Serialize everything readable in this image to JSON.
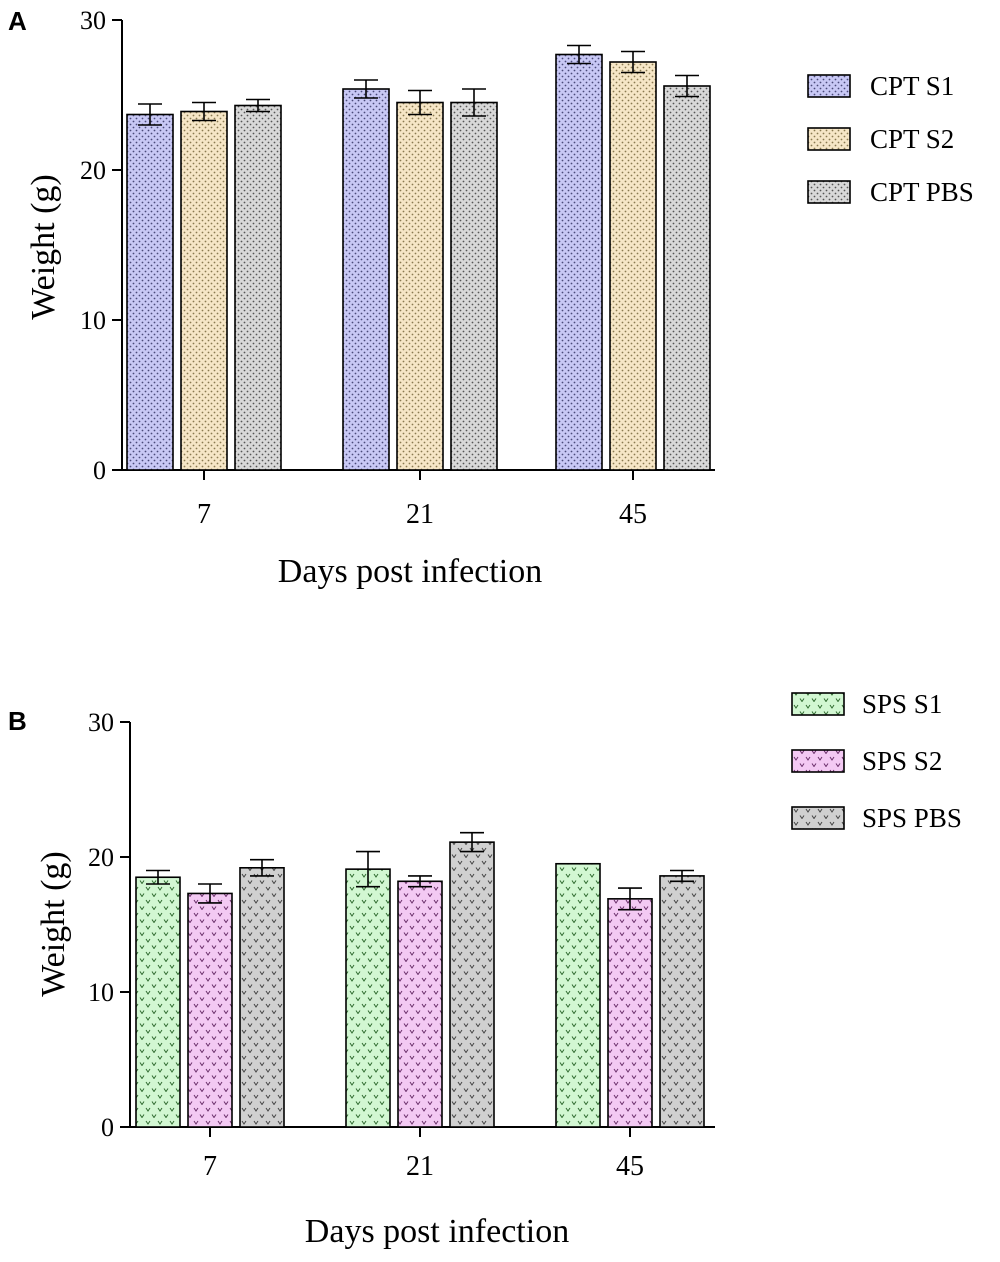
{
  "panels": [
    {
      "letter": "A",
      "chart_data": {
        "type": "bar",
        "title": "",
        "xlabel": "Days post infection",
        "ylabel": "Weight (g)",
        "ylim": [
          0,
          30
        ],
        "yticks": [
          0,
          10,
          20,
          30
        ],
        "categories": [
          "7",
          "21",
          "45"
        ],
        "series": [
          {
            "name": "CPT S1",
            "color": "#c8c8f5",
            "pattern": "dots",
            "values": [
              23.7,
              25.4,
              27.7
            ],
            "errors": [
              0.7,
              0.6,
              0.6
            ]
          },
          {
            "name": "CPT S2",
            "color": "#f6e6c6",
            "pattern": "dots",
            "values": [
              23.9,
              24.5,
              27.2
            ],
            "errors": [
              0.6,
              0.8,
              0.7
            ]
          },
          {
            "name": "CPT PBS",
            "color": "#d8d8d8",
            "pattern": "dots",
            "values": [
              24.3,
              24.5,
              25.6
            ],
            "errors": [
              0.4,
              0.9,
              0.7
            ]
          }
        ],
        "legend": "right"
      }
    },
    {
      "letter": "B",
      "chart_data": {
        "type": "bar",
        "title": "",
        "xlabel": "Days post infection",
        "ylabel": "Weight (g)",
        "ylim": [
          0,
          30
        ],
        "yticks": [
          0,
          10,
          20,
          30
        ],
        "categories": [
          "7",
          "21",
          "45"
        ],
        "series": [
          {
            "name": "SPS S1",
            "color": "#d2f7d2",
            "pattern": "chevrons",
            "values": [
              18.5,
              19.1,
              19.5
            ],
            "errors": [
              0.5,
              1.3,
              0.0
            ]
          },
          {
            "name": "SPS S2",
            "color": "#f3c9f3",
            "pattern": "chevrons",
            "values": [
              17.3,
              18.2,
              16.9
            ],
            "errors": [
              0.7,
              0.4,
              0.8
            ]
          },
          {
            "name": "SPS PBS",
            "color": "#d0d0d0",
            "pattern": "chevrons",
            "values": [
              19.2,
              21.1,
              18.6
            ],
            "errors": [
              0.6,
              0.7,
              0.4
            ]
          }
        ],
        "legend": "top-right"
      }
    }
  ]
}
